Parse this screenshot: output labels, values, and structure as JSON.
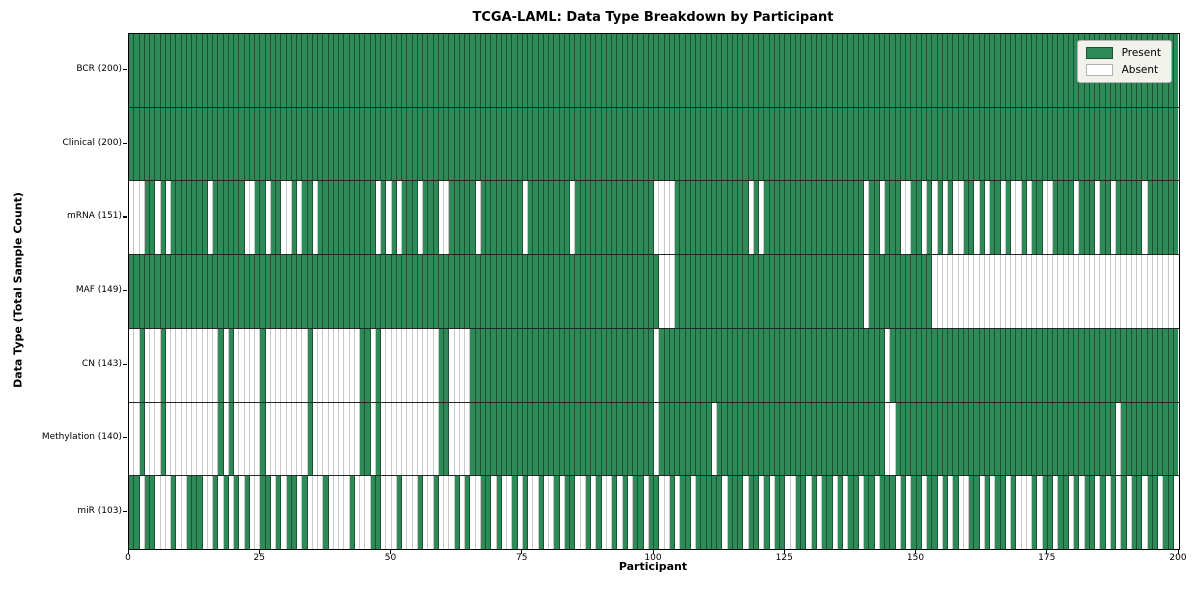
{
  "chart_data": {
    "type": "heatmap",
    "title": "TCGA-LAML: Data Type Breakdown by Participant",
    "xlabel": "Participant",
    "ylabel": "Data Type (Total Sample Count)",
    "x_ticks": [
      "0",
      "25",
      "50",
      "75",
      "100",
      "125",
      "150",
      "175",
      "200"
    ],
    "x_range": [
      0,
      200
    ],
    "n_participants": 200,
    "grid": false,
    "legend_position": "upper right",
    "legend": [
      {
        "label": "Present",
        "color": "#2e8b57"
      },
      {
        "label": "Absent",
        "color": "#ffffff"
      }
    ],
    "value_encoding": {
      "1": "Present",
      "0": "Absent"
    },
    "rows": [
      {
        "label": "BCR",
        "count": 200,
        "display": "BCR (200)",
        "pattern": "11111111111111111111111111111111111111111111111111111111111111111111111111111111111111111111111111111111111111111111111111111111111111111111111111111111111111111111111111111111111111111111111111111111"
      },
      {
        "label": "Clinical",
        "count": 200,
        "display": "Clinical (200)",
        "pattern": "11111111111111111111111111111111111111111111111111111111111111111111111111111111111111111111111111111111111111111111111111111111111111111111111111111111111111111111111111111111111111111111111111111111"
      },
      {
        "label": "mRNA",
        "count": 151,
        "display": "mRNA (151)",
        "pattern": "00011010111111101111110011011001011011111111111010101110111001111101111111101111111101111111111111110000111111111111110101111111111111111111011011100110101010011010110100101100111101110110111110111111"
      },
      {
        "label": "MAF",
        "count": 149,
        "display": "MAF (149)",
        "pattern": "11111111111111111111111111111111111111111111111111111111111111111111111111111111111111111111111111111000111111111111111111111111111111111111011111111111100000000000000000000000000000000000000000000000"
      },
      {
        "label": "CN",
        "count": 143,
        "display": "CN (143)",
        "pattern": "00100010000000000101000001000000001000000000110100000000000110000111111111111111111111111111111111110111111111111111111111111111111111111111111101111111111111111111111111111111111111111111111111111111"
      },
      {
        "label": "Methylation",
        "count": 140,
        "display": "Methylation (140)",
        "pattern": "00100010000000000101000001000000001000000000110100000000000110000111111111111111111111111111111111110111111111101111111111111111111111111111111100111111111111111111111111111111111111111111011111111111"
      },
      {
        "label": "miR",
        "count": 103,
        "display": "miR (103)",
        "pattern": "11011000100111001010101001101011010001000010001100010001001000101001101001010010010110010100101011011001011011111011101101011001101011010110110111010110110101001101011010001011011010110101010110110110"
      }
    ],
    "colors": {
      "present": "#2e8b57",
      "absent": "#ffffff",
      "present_edge": "#1c5234",
      "absent_edge": "#c9c9c9",
      "row_separator": "#262626",
      "plot_border": "#000000",
      "legend_bg": "#f1f2ec",
      "legend_border": "#b3b3b3"
    }
  }
}
